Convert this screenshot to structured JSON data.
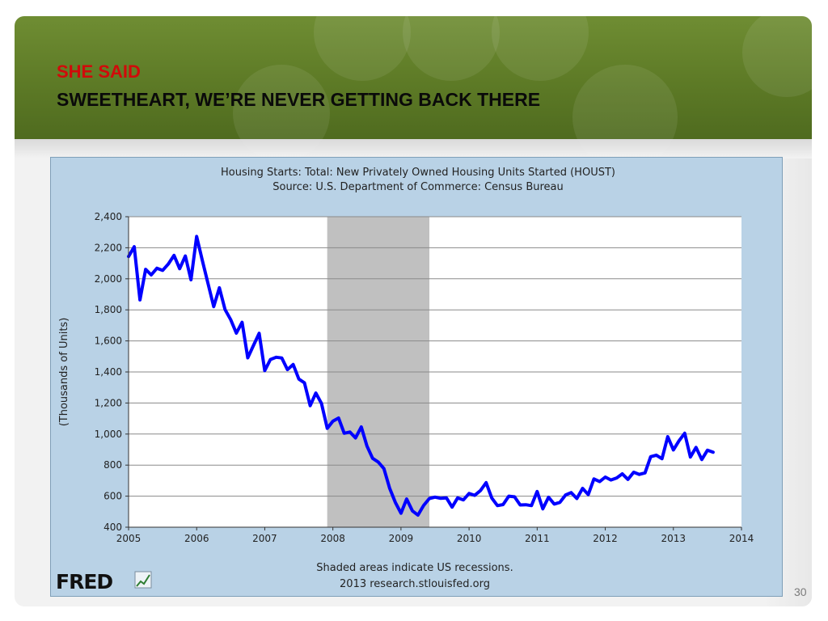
{
  "slide": {
    "heading_red": "SHE SAID",
    "heading_black": "SWEETHEART, WE’RE NEVER GETTING BACK THERE",
    "page_number": "30"
  },
  "colors": {
    "header_green": "#5d7a26",
    "heading_red": "#d10a0a",
    "chart_frame": "#b9d2e6",
    "plot_bg": "#ffffff",
    "recession_band": "#c0c0c0",
    "series_line": "#0000ff"
  },
  "logo": {
    "text": "FRED"
  },
  "chart_data": {
    "type": "line",
    "title": "Housing Starts: Total: New Privately Owned Housing Units Started (HOUST)",
    "subtitle": "Source: U.S. Department of Commerce: Census Bureau",
    "xlabel": "",
    "ylabel": "(Thousands of Units)",
    "xlim": [
      2005,
      2014
    ],
    "ylim": [
      400,
      2400
    ],
    "x_ticks": [
      "2005",
      "2006",
      "2007",
      "2008",
      "2009",
      "2010",
      "2011",
      "2012",
      "2013",
      "2014"
    ],
    "y_ticks": [
      "400",
      "600",
      "800",
      "1,000",
      "1,200",
      "1,400",
      "1,600",
      "1,800",
      "2,000",
      "2,200",
      "2,400"
    ],
    "grid": true,
    "recessions": [
      {
        "start": 2007.917,
        "end": 2009.417
      }
    ],
    "footnote": "Shaded areas indicate US recessions.",
    "credit": "2013 research.stlouisfed.org",
    "series": [
      {
        "x": [
          2005.0,
          2005.083,
          2005.167,
          2005.25,
          2005.333,
          2005.417,
          2005.5,
          2005.583,
          2005.667,
          2005.75,
          2005.833,
          2005.917,
          2006.0,
          2006.083,
          2006.167,
          2006.25,
          2006.333,
          2006.417,
          2006.5,
          2006.583,
          2006.667,
          2006.75,
          2006.833,
          2006.917,
          2007.0,
          2007.083,
          2007.167,
          2007.25,
          2007.333,
          2007.417,
          2007.5,
          2007.583,
          2007.667,
          2007.75,
          2007.833,
          2007.917,
          2008.0,
          2008.083,
          2008.167,
          2008.25,
          2008.333,
          2008.417,
          2008.5,
          2008.583,
          2008.667,
          2008.75,
          2008.833,
          2008.917,
          2009.0,
          2009.083,
          2009.167,
          2009.25,
          2009.333,
          2009.417,
          2009.5,
          2009.583,
          2009.667,
          2009.75,
          2009.833,
          2009.917,
          2010.0,
          2010.083,
          2010.167,
          2010.25,
          2010.333,
          2010.417,
          2010.5,
          2010.583,
          2010.667,
          2010.75,
          2010.833,
          2010.917,
          2011.0,
          2011.083,
          2011.167,
          2011.25,
          2011.333,
          2011.417,
          2011.5,
          2011.583,
          2011.667,
          2011.75,
          2011.833,
          2011.917,
          2012.0,
          2012.083,
          2012.167,
          2012.25,
          2012.333,
          2012.417,
          2012.5,
          2012.583,
          2012.667,
          2012.75,
          2012.833,
          2012.917,
          2013.0,
          2013.083,
          2013.167,
          2013.25,
          2013.333,
          2013.417,
          2013.5,
          2013.583
        ],
        "values": [
          2144,
          2207,
          1864,
          2061,
          2025,
          2068,
          2054,
          2095,
          2151,
          2065,
          2147,
          1994,
          2273,
          2119,
          1969,
          1821,
          1942,
          1802,
          1737,
          1650,
          1720,
          1491,
          1570,
          1649,
          1409,
          1480,
          1495,
          1490,
          1415,
          1448,
          1354,
          1330,
          1183,
          1264,
          1197,
          1037,
          1083,
          1103,
          1005,
          1013,
          975,
          1046,
          923,
          844,
          820,
          777,
          652,
          560,
          490,
          582,
          505,
          478,
          540,
          585,
          594,
          586,
          589,
          529,
          589,
          576,
          617,
          605,
          636,
          687,
          588,
          539,
          546,
          600,
          596,
          543,
          545,
          539,
          630,
          518,
          593,
          549,
          560,
          608,
          623,
          585,
          650,
          610,
          711,
          694,
          723,
          704,
          717,
          744,
          708,
          754,
          740,
          750,
          854,
          864,
          841,
          983,
          898,
          957,
          1005,
          852,
          914,
          836,
          896,
          883
        ]
      }
    ]
  }
}
